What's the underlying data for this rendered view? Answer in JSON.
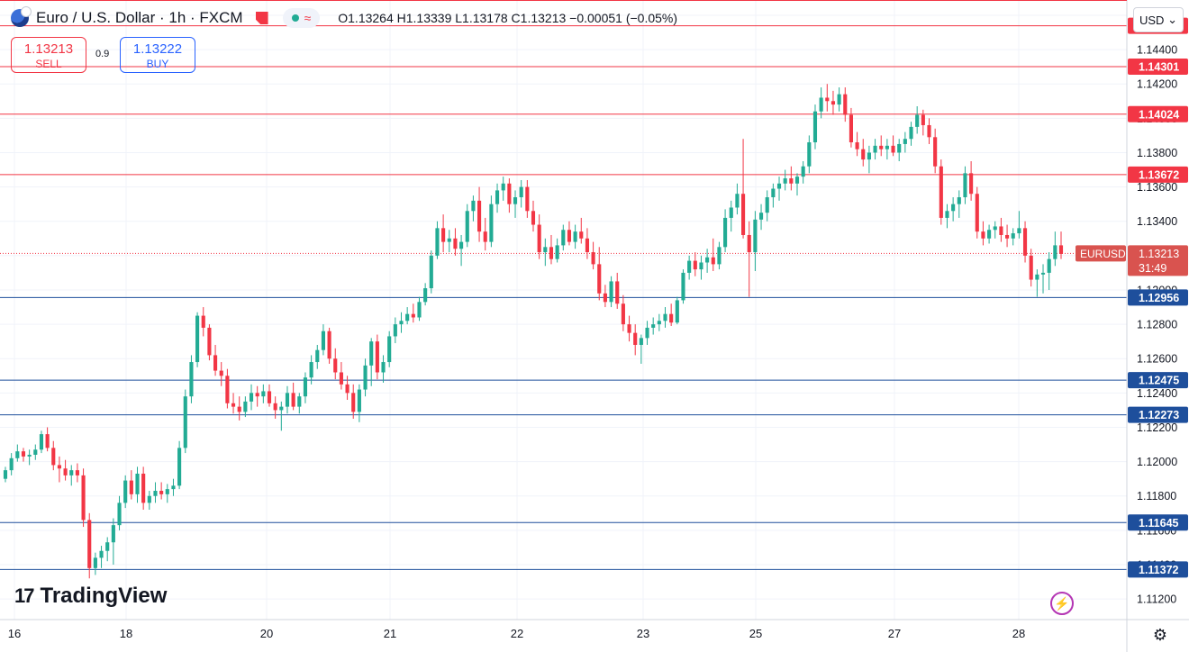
{
  "header": {
    "symbol_title": "Euro / U.S. Dollar · 1h · FXCM",
    "ohlc": {
      "open": "O1.13264",
      "high": "H1.13339",
      "low": "L1.13178",
      "close": "C1.13213",
      "change": "−0.00051 (−0.05%)"
    }
  },
  "trade": {
    "sell_price": "1.13213",
    "sell_label": "SELL",
    "spread": "0.9",
    "buy_price": "1.13222",
    "buy_label": "BUY"
  },
  "currency": "USD",
  "brand": "TradingView",
  "colors": {
    "up": "#22ab94",
    "down": "#f23645",
    "resistance": "#f23645",
    "support": "#1e4f9c",
    "badge_last": "#d9534f"
  },
  "chart_data": {
    "type": "candlestick",
    "symbol": "EURUSD",
    "timeframe": "1h",
    "x_tick_labels": [
      "16",
      "18",
      "20",
      "21",
      "22",
      "23",
      "25",
      "27",
      "28"
    ],
    "y_tick_labels": [
      "1.11200",
      "1.11400",
      "1.11600",
      "1.11800",
      "1.12000",
      "1.12200",
      "1.12400",
      "1.12600",
      "1.12800",
      "1.13000",
      "1.13200",
      "1.13400",
      "1.13600",
      "1.13800",
      "1.14000",
      "1.14200",
      "1.14400",
      "1.14600"
    ],
    "ylim": [
      1.1108,
      1.14689
    ],
    "last_price": {
      "label": "EURUSD",
      "value": "1.13213",
      "countdown": "31:49"
    },
    "horizontal_levels": [
      {
        "value": "1.14539",
        "kind": "resistance"
      },
      {
        "value": "1.14301",
        "kind": "resistance"
      },
      {
        "value": "1.14024",
        "kind": "resistance"
      },
      {
        "value": "1.13672",
        "kind": "resistance"
      },
      {
        "value": "1.12956",
        "kind": "support"
      },
      {
        "value": "1.12475",
        "kind": "support"
      },
      {
        "value": "1.12273",
        "kind": "support"
      },
      {
        "value": "1.11645",
        "kind": "support"
      },
      {
        "value": "1.11372",
        "kind": "support"
      }
    ],
    "candles": [
      [
        1.119,
        1.1197,
        1.1188,
        1.1195
      ],
      [
        1.1195,
        1.1205,
        1.1192,
        1.1202
      ],
      [
        1.1202,
        1.121,
        1.12,
        1.1206
      ],
      [
        1.1206,
        1.1208,
        1.12,
        1.1203
      ],
      [
        1.1203,
        1.1207,
        1.1198,
        1.1204
      ],
      [
        1.1204,
        1.121,
        1.1201,
        1.1207
      ],
      [
        1.1207,
        1.1218,
        1.1205,
        1.1216
      ],
      [
        1.1216,
        1.122,
        1.1206,
        1.1208
      ],
      [
        1.1208,
        1.1212,
        1.1195,
        1.1198
      ],
      [
        1.1198,
        1.1203,
        1.1188,
        1.1196
      ],
      [
        1.1196,
        1.1201,
        1.1189,
        1.1192
      ],
      [
        1.1192,
        1.1198,
        1.1186,
        1.1195
      ],
      [
        1.1195,
        1.1199,
        1.1188,
        1.1192
      ],
      [
        1.1192,
        1.1196,
        1.1162,
        1.1166
      ],
      [
        1.1166,
        1.117,
        1.1132,
        1.1138
      ],
      [
        1.1138,
        1.1147,
        1.1134,
        1.1144
      ],
      [
        1.1144,
        1.1151,
        1.1138,
        1.1148
      ],
      [
        1.1148,
        1.1156,
        1.1142,
        1.1153
      ],
      [
        1.1153,
        1.1167,
        1.114,
        1.1163
      ],
      [
        1.1163,
        1.118,
        1.116,
        1.1176
      ],
      [
        1.1176,
        1.1192,
        1.1173,
        1.1189
      ],
      [
        1.1189,
        1.1195,
        1.1178,
        1.1181
      ],
      [
        1.1181,
        1.1197,
        1.1176,
        1.1193
      ],
      [
        1.1193,
        1.1197,
        1.1172,
        1.1176
      ],
      [
        1.1176,
        1.1183,
        1.1172,
        1.118
      ],
      [
        1.118,
        1.1188,
        1.1176,
        1.1183
      ],
      [
        1.1183,
        1.1188,
        1.1178,
        1.1181
      ],
      [
        1.1181,
        1.1187,
        1.1176,
        1.1184
      ],
      [
        1.1184,
        1.119,
        1.118,
        1.1186
      ],
      [
        1.1186,
        1.1212,
        1.1184,
        1.1208
      ],
      [
        1.1208,
        1.1242,
        1.1205,
        1.1238
      ],
      [
        1.1238,
        1.1262,
        1.1234,
        1.1258
      ],
      [
        1.1258,
        1.1287,
        1.1255,
        1.1285
      ],
      [
        1.1285,
        1.129,
        1.1273,
        1.1278
      ],
      [
        1.1278,
        1.128,
        1.1259,
        1.1262
      ],
      [
        1.1262,
        1.1268,
        1.125,
        1.1253
      ],
      [
        1.1253,
        1.1258,
        1.1244,
        1.125
      ],
      [
        1.125,
        1.1254,
        1.1231,
        1.1234
      ],
      [
        1.1234,
        1.124,
        1.1228,
        1.1232
      ],
      [
        1.1232,
        1.1238,
        1.1224,
        1.1229
      ],
      [
        1.1229,
        1.1238,
        1.1226,
        1.1235
      ],
      [
        1.1235,
        1.1245,
        1.123,
        1.124
      ],
      [
        1.124,
        1.1244,
        1.1232,
        1.1238
      ],
      [
        1.1238,
        1.1245,
        1.1234,
        1.1241
      ],
      [
        1.1241,
        1.1245,
        1.1232,
        1.1234
      ],
      [
        1.1234,
        1.1238,
        1.1225,
        1.123
      ],
      [
        1.123,
        1.1235,
        1.1218,
        1.1232
      ],
      [
        1.1232,
        1.1244,
        1.1228,
        1.124
      ],
      [
        1.124,
        1.1246,
        1.123,
        1.1232
      ],
      [
        1.1232,
        1.124,
        1.1228,
        1.1238
      ],
      [
        1.1238,
        1.1252,
        1.1234,
        1.1249
      ],
      [
        1.1249,
        1.1262,
        1.1245,
        1.1258
      ],
      [
        1.1258,
        1.1268,
        1.1254,
        1.1265
      ],
      [
        1.1265,
        1.128,
        1.1262,
        1.1276
      ],
      [
        1.1276,
        1.1278,
        1.1257,
        1.126
      ],
      [
        1.126,
        1.1266,
        1.1248,
        1.1252
      ],
      [
        1.1252,
        1.1258,
        1.1242,
        1.1245
      ],
      [
        1.1245,
        1.125,
        1.1236,
        1.124
      ],
      [
        1.124,
        1.1245,
        1.1225,
        1.1229
      ],
      [
        1.1229,
        1.1245,
        1.1223,
        1.1242
      ],
      [
        1.1242,
        1.126,
        1.1238,
        1.1256
      ],
      [
        1.1256,
        1.1272,
        1.1244,
        1.127
      ],
      [
        1.127,
        1.1274,
        1.1248,
        1.1252
      ],
      [
        1.1252,
        1.1262,
        1.1246,
        1.1258
      ],
      [
        1.1258,
        1.1276,
        1.1255,
        1.1273
      ],
      [
        1.1273,
        1.1284,
        1.1269,
        1.128
      ],
      [
        1.128,
        1.1287,
        1.1275,
        1.1282
      ],
      [
        1.1282,
        1.129,
        1.128,
        1.1286
      ],
      [
        1.1286,
        1.1292,
        1.1281,
        1.1284
      ],
      [
        1.1284,
        1.1296,
        1.1282,
        1.1293
      ],
      [
        1.1293,
        1.1304,
        1.1291,
        1.1301
      ],
      [
        1.1301,
        1.1323,
        1.1298,
        1.132
      ],
      [
        1.132,
        1.134,
        1.1318,
        1.1336
      ],
      [
        1.1336,
        1.1344,
        1.1322,
        1.1328
      ],
      [
        1.1328,
        1.1335,
        1.1322,
        1.133
      ],
      [
        1.133,
        1.1336,
        1.132,
        1.1324
      ],
      [
        1.1324,
        1.1332,
        1.1314,
        1.1328
      ],
      [
        1.1328,
        1.135,
        1.1325,
        1.1346
      ],
      [
        1.1346,
        1.1355,
        1.134,
        1.1352
      ],
      [
        1.1352,
        1.136,
        1.1328,
        1.1334
      ],
      [
        1.1334,
        1.1342,
        1.1323,
        1.1328
      ],
      [
        1.1328,
        1.1355,
        1.1325,
        1.135
      ],
      [
        1.135,
        1.1362,
        1.1345,
        1.1358
      ],
      [
        1.1358,
        1.1366,
        1.1352,
        1.1362
      ],
      [
        1.1362,
        1.1365,
        1.1345,
        1.135
      ],
      [
        1.135,
        1.1358,
        1.1342,
        1.1354
      ],
      [
        1.1354,
        1.1364,
        1.1348,
        1.136
      ],
      [
        1.136,
        1.1364,
        1.1342,
        1.1346
      ],
      [
        1.1346,
        1.1352,
        1.1334,
        1.1338
      ],
      [
        1.1338,
        1.1344,
        1.1318,
        1.1322
      ],
      [
        1.1322,
        1.133,
        1.1314,
        1.1325
      ],
      [
        1.1325,
        1.1332,
        1.1315,
        1.1318
      ],
      [
        1.1318,
        1.133,
        1.1316,
        1.1326
      ],
      [
        1.1326,
        1.1338,
        1.1323,
        1.1335
      ],
      [
        1.1335,
        1.134,
        1.1326,
        1.1328
      ],
      [
        1.1328,
        1.1338,
        1.1324,
        1.1334
      ],
      [
        1.1334,
        1.1342,
        1.1327,
        1.133
      ],
      [
        1.133,
        1.1336,
        1.1318,
        1.1322
      ],
      [
        1.1322,
        1.1328,
        1.1312,
        1.1315
      ],
      [
        1.1315,
        1.1325,
        1.1294,
        1.1298
      ],
      [
        1.1298,
        1.1303,
        1.129,
        1.1293
      ],
      [
        1.1293,
        1.1308,
        1.129,
        1.1305
      ],
      [
        1.1305,
        1.131,
        1.1289,
        1.1292
      ],
      [
        1.1292,
        1.1297,
        1.1276,
        1.128
      ],
      [
        1.128,
        1.1285,
        1.127,
        1.1275
      ],
      [
        1.1275,
        1.128,
        1.1262,
        1.1268
      ],
      [
        1.1268,
        1.1274,
        1.1257,
        1.1272
      ],
      [
        1.1272,
        1.1282,
        1.1268,
        1.1278
      ],
      [
        1.1278,
        1.1284,
        1.1274,
        1.128
      ],
      [
        1.128,
        1.1286,
        1.1276,
        1.1282
      ],
      [
        1.1282,
        1.129,
        1.1278,
        1.1286
      ],
      [
        1.1286,
        1.1292,
        1.1279,
        1.1281
      ],
      [
        1.1281,
        1.1296,
        1.128,
        1.1294
      ],
      [
        1.1294,
        1.1312,
        1.1292,
        1.131
      ],
      [
        1.131,
        1.132,
        1.1306,
        1.1317
      ],
      [
        1.1317,
        1.1322,
        1.1308,
        1.1312
      ],
      [
        1.1312,
        1.132,
        1.1306,
        1.1316
      ],
      [
        1.1316,
        1.1324,
        1.131,
        1.1319
      ],
      [
        1.1319,
        1.133,
        1.1311,
        1.1315
      ],
      [
        1.1315,
        1.1328,
        1.1312,
        1.1325
      ],
      [
        1.1325,
        1.1347,
        1.1322,
        1.1342
      ],
      [
        1.1342,
        1.1352,
        1.1334,
        1.1348
      ],
      [
        1.1348,
        1.1362,
        1.1344,
        1.1356
      ],
      [
        1.1356,
        1.1388,
        1.133,
        1.1332
      ],
      [
        1.1332,
        1.134,
        1.1296,
        1.1322
      ],
      [
        1.1322,
        1.1346,
        1.1311,
        1.1341
      ],
      [
        1.1341,
        1.135,
        1.1335,
        1.1345
      ],
      [
        1.1345,
        1.1358,
        1.134,
        1.1354
      ],
      [
        1.1354,
        1.1362,
        1.1348,
        1.1359
      ],
      [
        1.1359,
        1.1366,
        1.1352,
        1.1362
      ],
      [
        1.1362,
        1.137,
        1.1358,
        1.1365
      ],
      [
        1.1365,
        1.1372,
        1.1358,
        1.1362
      ],
      [
        1.1362,
        1.1368,
        1.1355,
        1.1366
      ],
      [
        1.1366,
        1.1375,
        1.1362,
        1.1372
      ],
      [
        1.1372,
        1.139,
        1.1368,
        1.1386
      ],
      [
        1.1386,
        1.1408,
        1.1382,
        1.1404
      ],
      [
        1.1404,
        1.1418,
        1.14,
        1.1412
      ],
      [
        1.1412,
        1.142,
        1.1404,
        1.141
      ],
      [
        1.141,
        1.1416,
        1.1402,
        1.1408
      ],
      [
        1.1408,
        1.1418,
        1.1404,
        1.1414
      ],
      [
        1.1414,
        1.1418,
        1.1398,
        1.1402
      ],
      [
        1.1402,
        1.1406,
        1.1383,
        1.1386
      ],
      [
        1.1386,
        1.1392,
        1.1378,
        1.1382
      ],
      [
        1.1382,
        1.1388,
        1.1372,
        1.1376
      ],
      [
        1.1376,
        1.1384,
        1.1368,
        1.138
      ],
      [
        1.138,
        1.1388,
        1.1376,
        1.1384
      ],
      [
        1.1384,
        1.139,
        1.1378,
        1.1382
      ],
      [
        1.1382,
        1.1388,
        1.1376,
        1.1384
      ],
      [
        1.1384,
        1.139,
        1.1378,
        1.138
      ],
      [
        1.138,
        1.1388,
        1.1375,
        1.1385
      ],
      [
        1.1385,
        1.1392,
        1.138,
        1.1388
      ],
      [
        1.1388,
        1.1398,
        1.1384,
        1.1395
      ],
      [
        1.1395,
        1.1407,
        1.1391,
        1.1402
      ],
      [
        1.1402,
        1.1405,
        1.139,
        1.1396
      ],
      [
        1.1396,
        1.14,
        1.1385,
        1.1389
      ],
      [
        1.1389,
        1.1394,
        1.1368,
        1.1372
      ],
      [
        1.1372,
        1.1376,
        1.1338,
        1.1342
      ],
      [
        1.1342,
        1.135,
        1.1336,
        1.1346
      ],
      [
        1.1346,
        1.1354,
        1.134,
        1.135
      ],
      [
        1.135,
        1.1358,
        1.1342,
        1.1354
      ],
      [
        1.1354,
        1.1372,
        1.135,
        1.1368
      ],
      [
        1.1368,
        1.1375,
        1.1352,
        1.1356
      ],
      [
        1.1356,
        1.136,
        1.133,
        1.1334
      ],
      [
        1.1334,
        1.134,
        1.1326,
        1.133
      ],
      [
        1.133,
        1.1338,
        1.1327,
        1.1335
      ],
      [
        1.1335,
        1.134,
        1.133,
        1.1337
      ],
      [
        1.1337,
        1.1342,
        1.1328,
        1.1332
      ],
      [
        1.1332,
        1.1338,
        1.1325,
        1.133
      ],
      [
        1.133,
        1.1336,
        1.1326,
        1.1333
      ],
      [
        1.1333,
        1.1346,
        1.133,
        1.1336
      ],
      [
        1.1336,
        1.134,
        1.1316,
        1.132
      ],
      [
        1.132,
        1.1324,
        1.1302,
        1.1306
      ],
      [
        1.1306,
        1.1312,
        1.1296,
        1.1309
      ],
      [
        1.1309,
        1.1315,
        1.1298,
        1.131
      ],
      [
        1.131,
        1.1322,
        1.13,
        1.1318
      ],
      [
        1.1318,
        1.1334,
        1.1314,
        1.1326
      ],
      [
        1.1326,
        1.1334,
        1.1318,
        1.1321
      ]
    ]
  }
}
